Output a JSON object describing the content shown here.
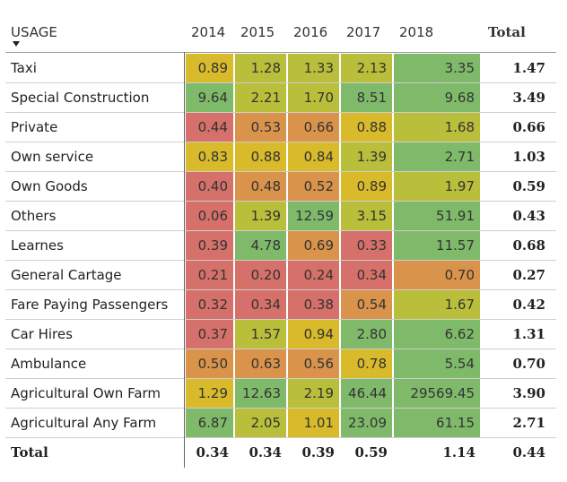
{
  "header": {
    "usage_label": "USAGE",
    "total_label": "Total"
  },
  "colors": {
    "low": "#d6706a",
    "mid_low": "#d9934a",
    "mid": "#d8ba2a",
    "mid_high": "#b9bf3a",
    "high": "#7fba6a"
  },
  "chart_data": {
    "type": "table",
    "title": "",
    "columns": [
      "2014",
      "2015",
      "2016",
      "2017",
      "2018"
    ],
    "total_column": "Total",
    "rows": [
      {
        "label": "Taxi",
        "values": [
          "0.89",
          "1.28",
          "1.33",
          "2.13",
          "3.35"
        ],
        "total": "1.47"
      },
      {
        "label": "Special Construction",
        "values": [
          "9.64",
          "2.21",
          "1.70",
          "8.51",
          "9.68"
        ],
        "total": "3.49"
      },
      {
        "label": "Private",
        "values": [
          "0.44",
          "0.53",
          "0.66",
          "0.88",
          "1.68"
        ],
        "total": "0.66"
      },
      {
        "label": "Own service",
        "values": [
          "0.83",
          "0.88",
          "0.84",
          "1.39",
          "2.71"
        ],
        "total": "1.03"
      },
      {
        "label": "Own Goods",
        "values": [
          "0.40",
          "0.48",
          "0.52",
          "0.89",
          "1.97"
        ],
        "total": "0.59"
      },
      {
        "label": "Others",
        "values": [
          "0.06",
          "1.39",
          "12.59",
          "3.15",
          "51.91"
        ],
        "total": "0.43"
      },
      {
        "label": "Learnes",
        "values": [
          "0.39",
          "4.78",
          "0.69",
          "0.33",
          "11.57"
        ],
        "total": "0.68"
      },
      {
        "label": "General Cartage",
        "values": [
          "0.21",
          "0.20",
          "0.24",
          "0.34",
          "0.70"
        ],
        "total": "0.27"
      },
      {
        "label": "Fare Paying Passengers",
        "values": [
          "0.32",
          "0.34",
          "0.38",
          "0.54",
          "1.67"
        ],
        "total": "0.42"
      },
      {
        "label": "Car Hires",
        "values": [
          "0.37",
          "1.57",
          "0.94",
          "2.80",
          "6.62"
        ],
        "total": "1.31"
      },
      {
        "label": "Ambulance",
        "values": [
          "0.50",
          "0.63",
          "0.56",
          "0.78",
          "5.54"
        ],
        "total": "0.70"
      },
      {
        "label": "Agricultural Own Farm",
        "values": [
          "1.29",
          "12.63",
          "2.19",
          "46.44",
          "29569.45"
        ],
        "total": "3.90"
      },
      {
        "label": "Agricultural Any Farm",
        "values": [
          "6.87",
          "2.05",
          "1.01",
          "23.09",
          "61.15"
        ],
        "total": "2.71"
      }
    ],
    "footer": {
      "label": "Total",
      "values": [
        "0.34",
        "0.34",
        "0.39",
        "0.59",
        "1.14"
      ],
      "total": "0.44"
    },
    "cell_colors": [
      [
        "mid",
        "mid_high",
        "mid_high",
        "mid_high",
        "high"
      ],
      [
        "high",
        "mid_high",
        "mid_high",
        "high",
        "high"
      ],
      [
        "low",
        "mid_low",
        "mid_low",
        "mid",
        "mid_high"
      ],
      [
        "mid",
        "mid",
        "mid",
        "mid_high",
        "high"
      ],
      [
        "low",
        "mid_low",
        "mid_low",
        "mid",
        "mid_high"
      ],
      [
        "low",
        "mid_high",
        "high",
        "mid_high",
        "high"
      ],
      [
        "low",
        "high",
        "mid_low",
        "low",
        "high"
      ],
      [
        "low",
        "low",
        "low",
        "low",
        "mid_low"
      ],
      [
        "low",
        "low",
        "low",
        "mid_low",
        "mid_high"
      ],
      [
        "low",
        "mid_high",
        "mid",
        "high",
        "high"
      ],
      [
        "mid_low",
        "mid_low",
        "mid_low",
        "mid",
        "high"
      ],
      [
        "mid",
        "high",
        "mid_high",
        "high",
        "high"
      ],
      [
        "high",
        "mid_high",
        "mid",
        "high",
        "high"
      ]
    ]
  }
}
